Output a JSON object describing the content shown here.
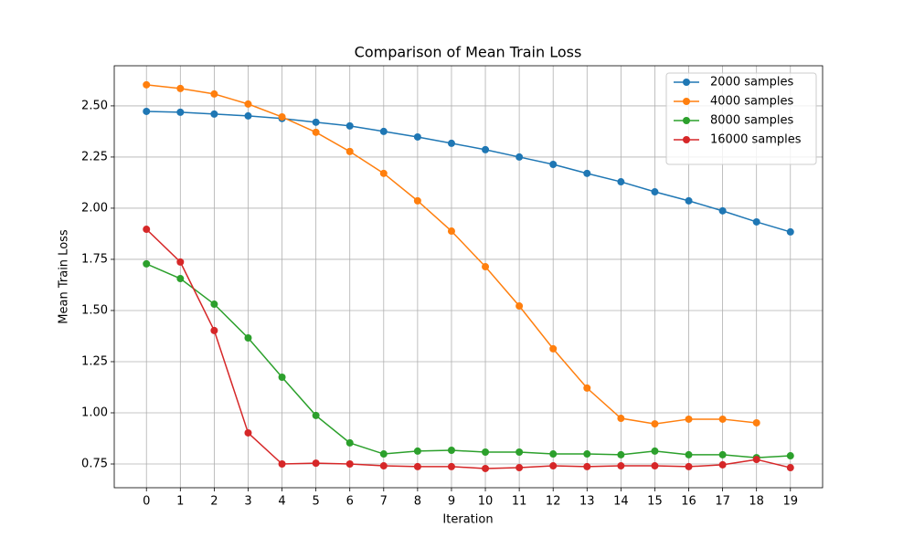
{
  "chart_data": {
    "type": "line",
    "title": "Comparison of Mean Train Loss",
    "xlabel": "Iteration",
    "ylabel": "Mean Train Loss",
    "x": [
      0,
      1,
      2,
      3,
      4,
      5,
      6,
      7,
      8,
      9,
      10,
      11,
      12,
      13,
      14,
      15,
      16,
      17,
      18,
      19
    ],
    "series": [
      {
        "name": "2000 samples",
        "color": "#1f77b4",
        "values": [
          2.473,
          2.469,
          2.46,
          2.451,
          2.438,
          2.42,
          2.402,
          2.375,
          2.348,
          2.317,
          2.286,
          2.25,
          2.214,
          2.17,
          2.129,
          2.08,
          2.036,
          1.987,
          1.933,
          1.884
        ]
      },
      {
        "name": "4000 samples",
        "color": "#ff7f0e",
        "values": [
          2.603,
          2.585,
          2.558,
          2.509,
          2.446,
          2.371,
          2.277,
          2.17,
          2.036,
          1.888,
          1.714,
          1.522,
          1.313,
          1.121,
          0.973,
          0.946,
          0.969,
          0.969,
          0.951,
          null
        ]
      },
      {
        "name": "8000 samples",
        "color": "#2ca02c",
        "values": [
          1.728,
          1.656,
          1.531,
          1.366,
          1.174,
          0.987,
          0.853,
          0.799,
          0.813,
          0.817,
          0.808,
          0.808,
          0.799,
          0.799,
          0.795,
          0.813,
          0.795,
          0.795,
          0.781,
          0.79
        ]
      },
      {
        "name": "16000 samples",
        "color": "#d62728",
        "values": [
          1.897,
          1.737,
          1.402,
          0.902,
          0.75,
          0.754,
          0.75,
          0.741,
          0.737,
          0.737,
          0.728,
          0.732,
          0.741,
          0.737,
          0.741,
          0.741,
          0.737,
          0.746,
          0.772,
          0.732
        ]
      }
    ],
    "xlim": [
      -0.95,
      19.95
    ],
    "xticks": [
      0,
      1,
      2,
      3,
      4,
      5,
      6,
      7,
      8,
      9,
      10,
      11,
      12,
      13,
      14,
      15,
      16,
      17,
      18,
      19
    ],
    "ylim": [
      0.634,
      2.696
    ],
    "yticks": [
      {
        "value": 0.75,
        "label": "0.75"
      },
      {
        "value": 1.0,
        "label": "1.00"
      },
      {
        "value": 1.25,
        "label": "1.25"
      },
      {
        "value": 1.5,
        "label": "1.50"
      },
      {
        "value": 1.75,
        "label": "1.75"
      },
      {
        "value": 2.0,
        "label": "2.00"
      },
      {
        "value": 2.25,
        "label": "2.25"
      },
      {
        "value": 2.5,
        "label": "2.50"
      }
    ],
    "grid": true,
    "legend": "upper right"
  }
}
